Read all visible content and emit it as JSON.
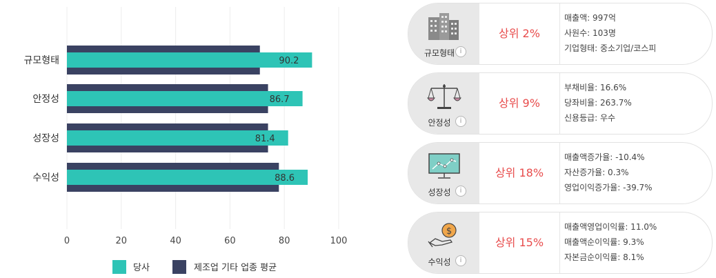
{
  "chart_data": {
    "type": "bar",
    "categories": [
      "규모형태",
      "안정성",
      "성장성",
      "수익성"
    ],
    "series": [
      {
        "name": "당사",
        "values": [
          90.2,
          86.7,
          81.4,
          88.6
        ],
        "color": "#2ec4b6"
      },
      {
        "name": "제조업 기타 업종 평균",
        "values": [
          71,
          74,
          74,
          78
        ],
        "color": "#3a4262"
      }
    ],
    "xlim": [
      0,
      100
    ],
    "xticks": [
      "0",
      "20",
      "40",
      "60",
      "80",
      "100"
    ],
    "orientation": "horizontal",
    "grid": true,
    "legend_position": "bottom"
  },
  "cards": [
    {
      "category": "규모형태",
      "icon": "building-icon",
      "rank": "상위 2%",
      "details": [
        "매출액: 997억",
        "사원수: 103명",
        "기업형태: 중소기업/코스피"
      ]
    },
    {
      "category": "안정성",
      "icon": "scale-icon",
      "rank": "상위 9%",
      "details": [
        "부채비율: 16.6%",
        "당좌비율: 263.7%",
        "신용등급: 우수"
      ]
    },
    {
      "category": "성장성",
      "icon": "monitor-chart-icon",
      "rank": "상위 18%",
      "details": [
        "매출액증가율: -10.4%",
        "자산증가율: 0.3%",
        "영업이익증가율: -39.7%"
      ]
    },
    {
      "category": "수익성",
      "icon": "coin-hand-icon",
      "rank": "상위 15%",
      "details": [
        "매출액영업이익률: 11.0%",
        "매출액순이익률: 9.3%",
        "자본금순이익률: 8.1%"
      ]
    }
  ],
  "info_glyph": "i"
}
